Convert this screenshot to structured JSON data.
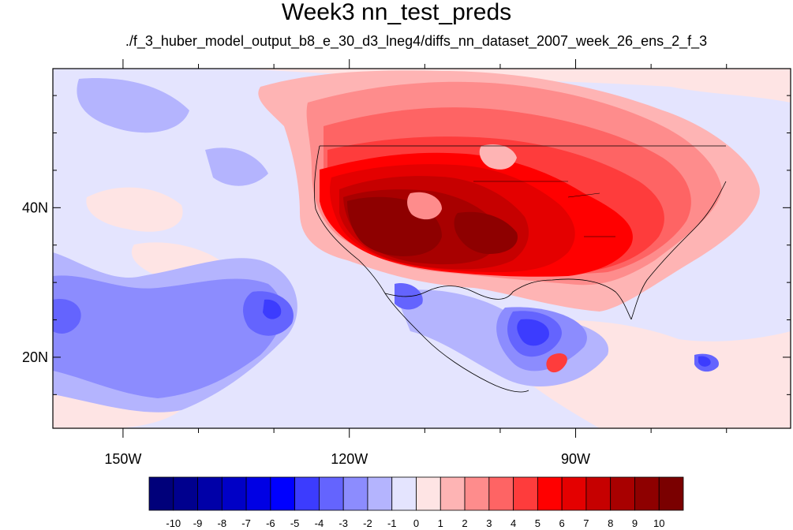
{
  "title": "Week3 nn_test_preds",
  "subtitle": "./f_3_huber_model_output_b8_e_30_d3_lneg4/diffs_nn_dataset_2007_week_26_ens_2_f_3",
  "map": {
    "lon_range": [
      -159.3,
      -61.5
    ],
    "lat_range": [
      10.5,
      58.6
    ],
    "lat_ticks": [
      {
        "value": 40,
        "label": "40N"
      },
      {
        "value": 20,
        "label": "20N"
      }
    ],
    "lon_ticks": [
      {
        "value": -150,
        "label": "150W"
      },
      {
        "value": -120,
        "label": "120W"
      },
      {
        "value": -90,
        "label": "90W"
      }
    ]
  },
  "colorbar": {
    "levels": [
      "-10",
      "-9",
      "-8",
      "-7",
      "-6",
      "-5",
      "-4",
      "-3",
      "-2",
      "-1",
      "0",
      "1",
      "2",
      "3",
      "4",
      "5",
      "6",
      "7",
      "8",
      "9",
      "10"
    ],
    "colors": [
      "#00007a",
      "#00008e",
      "#0000a8",
      "#0000c6",
      "#0000e4",
      "#0000ff",
      "#3c3cfe",
      "#6464fe",
      "#8c8cfe",
      "#b4b4fe",
      "#e4e4fe",
      "#fee4e4",
      "#feb4b4",
      "#fe8c8c",
      "#fe6464",
      "#fe3c3c",
      "#ff0000",
      "#e40000",
      "#c60000",
      "#a80000",
      "#8e0000",
      "#7a0000"
    ]
  },
  "colors": {
    "background_field": "#e4e4fe"
  }
}
